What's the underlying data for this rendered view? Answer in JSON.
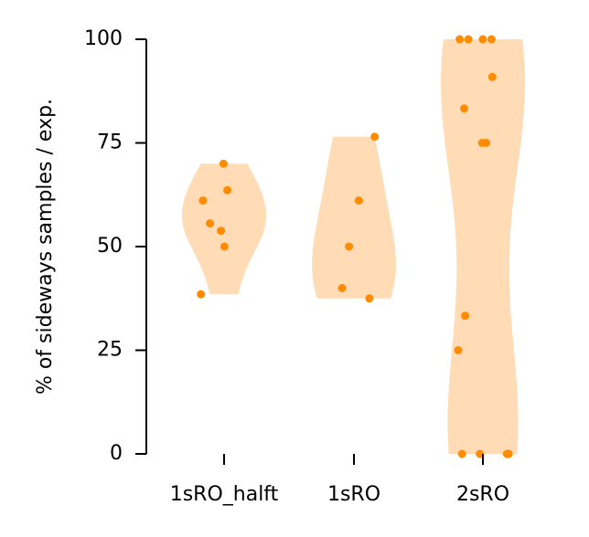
{
  "chart_data": {
    "type": "violin",
    "title": "",
    "xlabel": "",
    "ylabel": "% of sideways samples / exp.",
    "ylim": [
      0,
      100
    ],
    "yticks": [
      0,
      25,
      50,
      75,
      100
    ],
    "categories": [
      "1sRO_halft",
      "1sRO",
      "2sRO"
    ],
    "grid": false,
    "colors": {
      "violin_fill": "#ffdcb5",
      "point": "#ff8c00",
      "axis": "#000000"
    },
    "groups": [
      {
        "category": "1sRO_halft",
        "values": [
          70,
          63.6,
          61.1,
          55.6,
          53.8,
          50,
          38.5
        ]
      },
      {
        "category": "1sRO",
        "values": [
          76.5,
          61.1,
          50,
          40,
          37.5
        ]
      },
      {
        "category": "2sRO",
        "values": [
          100,
          100,
          100,
          100,
          90.9,
          83.3,
          75,
          75,
          33.3,
          25,
          0,
          0,
          0,
          0,
          0
        ]
      }
    ]
  }
}
